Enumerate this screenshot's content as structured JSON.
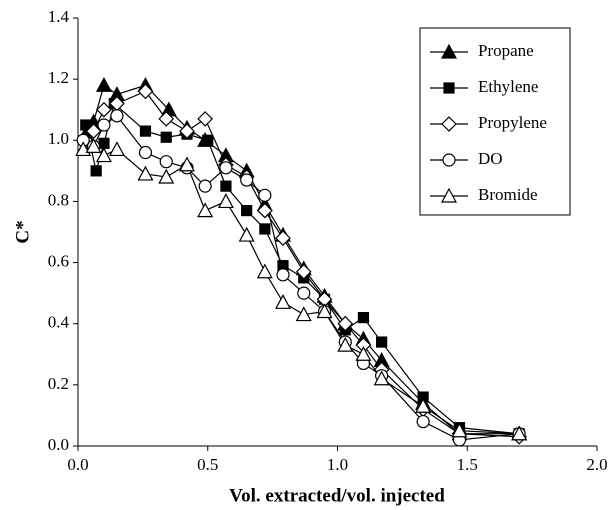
{
  "chart_data": {
    "type": "line",
    "xlabel": "Vol. extracted/vol. injected",
    "ylabel": "C*",
    "xlim": [
      0,
      2.0
    ],
    "ylim": [
      0,
      1.4
    ],
    "xticks": [
      {
        "value": 0,
        "label": "0.0"
      },
      {
        "value": 0.5,
        "label": "0.5"
      },
      {
        "value": 1,
        "label": "1.0"
      },
      {
        "value": 1.5,
        "label": "1.5"
      },
      {
        "value": 2,
        "label": "2.0"
      }
    ],
    "yticks": [
      {
        "value": 0,
        "label": "0.0"
      },
      0.2,
      0.4,
      0.6,
      0.8,
      {
        "value": 1,
        "label": "1.0"
      },
      1.2,
      1.4
    ],
    "legend": "upper right",
    "series": [
      {
        "name": "Propane",
        "color": "#000000",
        "marker": "triangle",
        "filled": true,
        "x": [
          0.03,
          0.06,
          0.1,
          0.15,
          0.26,
          0.35,
          0.42,
          0.49,
          0.57,
          0.65,
          0.72,
          0.79,
          0.87,
          0.95,
          1.03,
          1.1,
          1.17,
          1.33,
          1.47,
          1.7
        ],
        "values": [
          1.02,
          1.06,
          1.18,
          1.15,
          1.18,
          1.1,
          1.04,
          1.0,
          0.95,
          0.9,
          0.79,
          0.69,
          0.58,
          0.49,
          0.4,
          0.35,
          0.28,
          0.14,
          0.04,
          0.04
        ]
      },
      {
        "name": "Ethylene",
        "color": "#000000",
        "marker": "square",
        "filled": true,
        "x": [
          0.03,
          0.07,
          0.1,
          0.14,
          0.26,
          0.34,
          0.42,
          0.5,
          0.57,
          0.65,
          0.72,
          0.79,
          0.87,
          0.95,
          1.03,
          1.1,
          1.17,
          1.33,
          1.47,
          1.7
        ],
        "values": [
          1.05,
          0.9,
          0.99,
          1.12,
          1.03,
          1.01,
          1.02,
          1.0,
          0.85,
          0.77,
          0.71,
          0.59,
          0.55,
          0.48,
          0.38,
          0.42,
          0.34,
          0.16,
          0.06,
          0.04
        ]
      },
      {
        "name": "Propylene",
        "color": "#000000",
        "marker": "diamond",
        "filled": false,
        "x": [
          0.03,
          0.06,
          0.1,
          0.15,
          0.26,
          0.34,
          0.42,
          0.49,
          0.57,
          0.65,
          0.72,
          0.79,
          0.87,
          0.95,
          1.03,
          1.1,
          1.17,
          1.33,
          1.47,
          1.7
        ],
        "values": [
          1.0,
          1.03,
          1.1,
          1.12,
          1.16,
          1.07,
          1.03,
          1.07,
          0.92,
          0.88,
          0.77,
          0.68,
          0.57,
          0.48,
          0.4,
          0.33,
          0.25,
          0.12,
          0.04,
          0.03
        ]
      },
      {
        "name": "DO",
        "color": "#000000",
        "marker": "circle",
        "filled": false,
        "x": [
          0.02,
          0.06,
          0.1,
          0.15,
          0.26,
          0.34,
          0.42,
          0.49,
          0.57,
          0.65,
          0.72,
          0.79,
          0.87,
          0.95,
          1.03,
          1.1,
          1.17,
          1.33,
          1.47,
          1.7
        ],
        "values": [
          1.0,
          0.98,
          1.05,
          1.08,
          0.96,
          0.93,
          0.91,
          0.85,
          0.91,
          0.87,
          0.82,
          0.56,
          0.5,
          0.44,
          0.34,
          0.27,
          0.23,
          0.08,
          0.02,
          0.04
        ]
      },
      {
        "name": "Bromide",
        "color": "#000000",
        "marker": "triangle",
        "filled": false,
        "x": [
          0.02,
          0.06,
          0.1,
          0.15,
          0.26,
          0.34,
          0.42,
          0.49,
          0.57,
          0.65,
          0.72,
          0.79,
          0.87,
          0.95,
          1.03,
          1.1,
          1.17,
          1.33,
          1.47,
          1.7
        ],
        "values": [
          0.97,
          0.98,
          0.95,
          0.97,
          0.89,
          0.88,
          0.92,
          0.77,
          0.8,
          0.69,
          0.57,
          0.47,
          0.43,
          0.44,
          0.33,
          0.3,
          0.22,
          0.13,
          0.05,
          0.04
        ]
      }
    ]
  }
}
